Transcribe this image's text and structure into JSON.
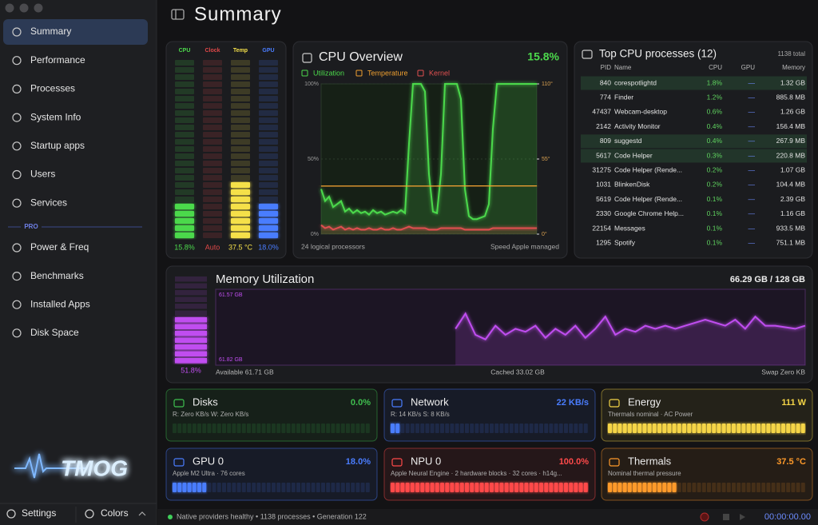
{
  "header": {
    "title": "Summary"
  },
  "sidebar": {
    "items": [
      "Summary",
      "Performance",
      "Processes",
      "System Info",
      "Startup apps",
      "Users",
      "Services"
    ],
    "section": "PRO",
    "pro_items": [
      "Power & Freq",
      "Benchmarks",
      "Installed Apps",
      "Disk Space"
    ],
    "logo": "TMOG",
    "settings": "Settings",
    "colors": "Colors"
  },
  "gauges": [
    {
      "label": "CPU",
      "value": "15.8%",
      "level": 18,
      "color": "#4cd94c"
    },
    {
      "label": "Clock",
      "value": "Auto",
      "level": 0,
      "color": "#e04848"
    },
    {
      "label": "Temp",
      "value": "37.5 °C",
      "level": 32,
      "color": "#f5e04a"
    },
    {
      "label": "GPU",
      "value": "18.0%",
      "level": 20,
      "color": "#4a7dff"
    }
  ],
  "cpu_chart": {
    "type": "line",
    "title": "CPU Overview",
    "value": "15.8%",
    "ylim": [
      0,
      100
    ],
    "yticks": [
      {
        "value": 0,
        "label": "0%"
      },
      {
        "value": 50,
        "label": "50%"
      },
      {
        "value": 100,
        "label": "100%"
      }
    ],
    "y2lim": [
      0,
      110
    ],
    "y2ticks": [
      {
        "value": 0,
        "label": "0°"
      },
      {
        "value": 55,
        "label": "55°"
      },
      {
        "value": 110,
        "label": "110°"
      }
    ],
    "grid": true,
    "series": [
      {
        "name": "Utilization",
        "color": "#4cd94c",
        "values": [
          30,
          22,
          25,
          18,
          20,
          22,
          15,
          17,
          14,
          16,
          14,
          15,
          13,
          16,
          14,
          15,
          13,
          14,
          15,
          14,
          16,
          14,
          60,
          100,
          100,
          100,
          95,
          40,
          15,
          14,
          40,
          100,
          100,
          100,
          100,
          90,
          30,
          12,
          10,
          10,
          11,
          12,
          20,
          70,
          100,
          100,
          100,
          100,
          100,
          100,
          100,
          100,
          100,
          100,
          100
        ]
      },
      {
        "name": "Temperature",
        "color": "#f0a030",
        "axis": "y2",
        "values": [
          35,
          35,
          35,
          35,
          35,
          35,
          35,
          35,
          35,
          35,
          35,
          35,
          35,
          35,
          35,
          35,
          35,
          35,
          35,
          35,
          35,
          35,
          35,
          35,
          35,
          35,
          35,
          35,
          35,
          35,
          35.5,
          35.5,
          35.5,
          35.5,
          35.5,
          35.5,
          35.5,
          35.5,
          35.5,
          35.5,
          35.5,
          35.5,
          35.5,
          35.5,
          35.5,
          35.5,
          35.5,
          35.5,
          35.5,
          35.5,
          35.5,
          35.5,
          35.5,
          35.5,
          35.5
        ]
      },
      {
        "name": "Kernel",
        "color": "#e05050",
        "values": [
          6,
          4,
          5,
          3,
          4,
          5,
          3,
          4,
          3,
          4,
          3,
          3,
          4,
          3,
          3,
          4,
          3,
          3,
          4,
          3,
          3,
          4,
          5,
          4,
          4,
          4,
          4,
          3,
          3,
          3,
          4,
          4,
          4,
          4,
          4,
          4,
          3,
          3,
          3,
          3,
          3,
          3,
          3,
          4,
          4,
          4,
          4,
          4,
          4,
          4,
          4,
          4,
          4,
          4,
          4
        ]
      }
    ],
    "footer_left": "24 logical processors",
    "footer_right": "Speed Apple managed"
  },
  "processes": {
    "title": "Top CPU processes (12)",
    "total": "1138 total",
    "columns": [
      "PID",
      "Name",
      "CPU",
      "GPU",
      "Memory"
    ],
    "rows": [
      [
        "840",
        "corespotlightd",
        "1.8%",
        "—",
        "1.32 GB"
      ],
      [
        "774",
        "Finder",
        "1.2%",
        "—",
        "885.8 MB"
      ],
      [
        "47437",
        "Webcam-desktop",
        "0.6%",
        "—",
        "1.26 GB"
      ],
      [
        "2142",
        "Activity Monitor",
        "0.4%",
        "—",
        "156.4 MB"
      ],
      [
        "809",
        "suggestd",
        "0.4%",
        "—",
        "267.9 MB"
      ],
      [
        "5617",
        "Code Helper",
        "0.3%",
        "—",
        "220.8 MB"
      ],
      [
        "31275",
        "Code Helper (Rende...",
        "0.2%",
        "—",
        "1.07 GB"
      ],
      [
        "1031",
        "BlinkenDisk",
        "0.2%",
        "—",
        "104.4 MB"
      ],
      [
        "5619",
        "Code Helper (Rende...",
        "0.1%",
        "—",
        "2.39 GB"
      ],
      [
        "2330",
        "Google Chrome Help...",
        "0.1%",
        "—",
        "1.16 GB"
      ],
      [
        "22154",
        "Messages",
        "0.1%",
        "—",
        "933.5 MB"
      ],
      [
        "1295",
        "Spotify",
        "0.1%",
        "—",
        "751.1 MB"
      ]
    ]
  },
  "memory": {
    "type": "line",
    "title": "Memory Utilization",
    "value": "66.29 GB / 128 GB",
    "color": "#c04ef0",
    "meter_label": "51.8%",
    "meter_level": 52,
    "ylim": [
      61.82,
      61.57
    ],
    "yticks": [
      {
        "value": 61.57,
        "label": "61.57 GB"
      },
      {
        "value": 61.82,
        "label": "61.82 GB"
      }
    ],
    "values": [
      null,
      null,
      null,
      null,
      null,
      null,
      null,
      null,
      null,
      null,
      null,
      null,
      null,
      null,
      null,
      null,
      null,
      null,
      null,
      null,
      null,
      null,
      null,
      null,
      61.7,
      61.65,
      61.72,
      61.735,
      61.69,
      61.72,
      61.7,
      61.71,
      61.69,
      61.73,
      61.7,
      61.72,
      61.69,
      61.73,
      61.7,
      61.66,
      61.72,
      61.7,
      61.71,
      61.69,
      61.7,
      61.69,
      61.7,
      61.69,
      61.68,
      61.67,
      61.68,
      61.69,
      61.67,
      61.7,
      61.66,
      61.69,
      61.69,
      61.695,
      61.7,
      61.69
    ],
    "available": "Available 61.71 GB",
    "cached": "Cached 33.02 GB",
    "swap": "Swap Zero KB"
  },
  "cards": [
    {
      "title": "Disks",
      "value": "0.0%",
      "detail": "R: Zero KB/s  W: Zero KB/s",
      "color": "#3fbf4f",
      "level": 0
    },
    {
      "title": "Network",
      "value": "22 KB/s",
      "detail": "R: 14 KB/s  S: 8 KB/s",
      "color": "#4a7dff",
      "level": 5
    },
    {
      "title": "Energy",
      "value": "111 W",
      "detail": "Thermals nominal · AC Power",
      "color": "#f5d547",
      "level": 100
    },
    {
      "title": "GPU 0",
      "value": "18.0%",
      "detail": "Apple M2 Ultra · 76 cores",
      "color": "#4a7dff",
      "level": 18
    },
    {
      "title": "NPU 0",
      "value": "100.0%",
      "detail": "Apple Neural Engine · 2 hardware blocks · 32 cores · h14g...",
      "color": "#ff4a4a",
      "level": 100
    },
    {
      "title": "Thermals",
      "value": "37.5 °C",
      "detail": "Nominal thermal pressure",
      "color": "#ff9a2a",
      "level": 34
    }
  ],
  "status": {
    "text": "Native providers healthy • 1138 processes • Generation 122",
    "timer": "00:00:00.00"
  }
}
